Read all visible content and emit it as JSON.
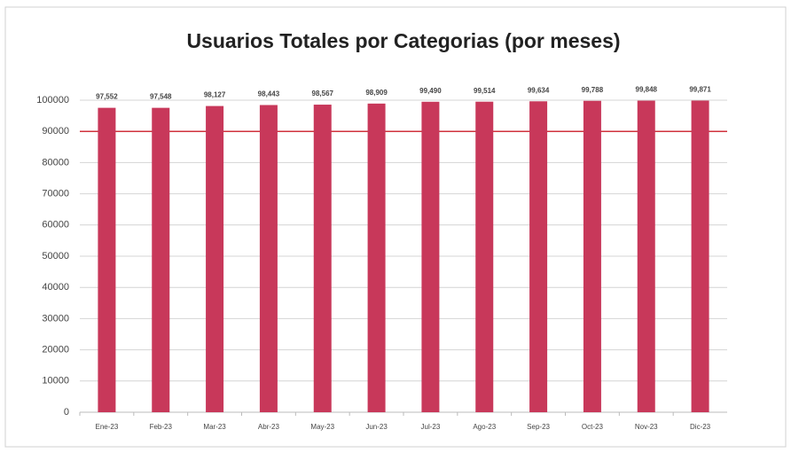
{
  "chart_data": {
    "type": "bar",
    "title": "Usuarios Totales por Categorias (por meses)",
    "categories": [
      "Ene-23",
      "Feb-23",
      "Mar-23",
      "Abr-23",
      "May-23",
      "Jun-23",
      "Jul-23",
      "Ago-23",
      "Sep-23",
      "Oct-23",
      "Nov-23",
      "Dic-23"
    ],
    "values": [
      97552,
      97548,
      98127,
      98443,
      98567,
      98909,
      99490,
      99514,
      99634,
      99788,
      99848,
      99871
    ],
    "value_labels": [
      "97,552",
      "97,548",
      "98,127",
      "98,443",
      "98,567",
      "98,909",
      "99,490",
      "99,514",
      "99,634",
      "99,788",
      "99,848",
      "99,871"
    ],
    "color": "#c8385a",
    "ylim": [
      0,
      100000
    ],
    "yticks": [
      0,
      10000,
      20000,
      30000,
      40000,
      50000,
      60000,
      70000,
      80000,
      90000,
      100000
    ],
    "grid": true,
    "reference_line": {
      "value": 90000,
      "color": "#d0323c"
    }
  }
}
